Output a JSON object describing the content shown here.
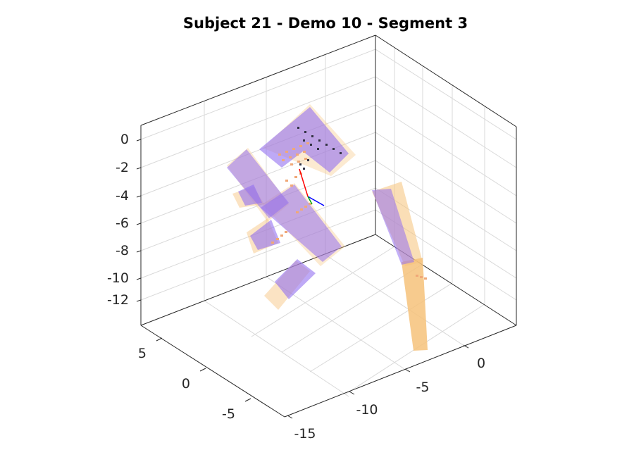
{
  "chart_data": {
    "type": "3d-scatter-surface",
    "title": "Subject 21 - Demo 10 - Segment 3",
    "xlabel": "",
    "ylabel": "",
    "zlabel": "",
    "grid": true,
    "z_ticks": [
      "0",
      "-2",
      "-4",
      "-6",
      "-8",
      "-10",
      "-12"
    ],
    "y_ticks": [
      "5",
      "0",
      "-5"
    ],
    "x_ticks": [
      "-15",
      "-10",
      "-5",
      "0"
    ],
    "series": [
      {
        "color": "#9370f0"
      },
      {
        "color": "#f6c27a"
      },
      {
        "color": "#f0a878"
      }
    ],
    "axes_frame": [
      {
        "color": "#ff0000"
      },
      {
        "color": "#0000ff"
      },
      {
        "color": "#00aa00"
      }
    ]
  }
}
